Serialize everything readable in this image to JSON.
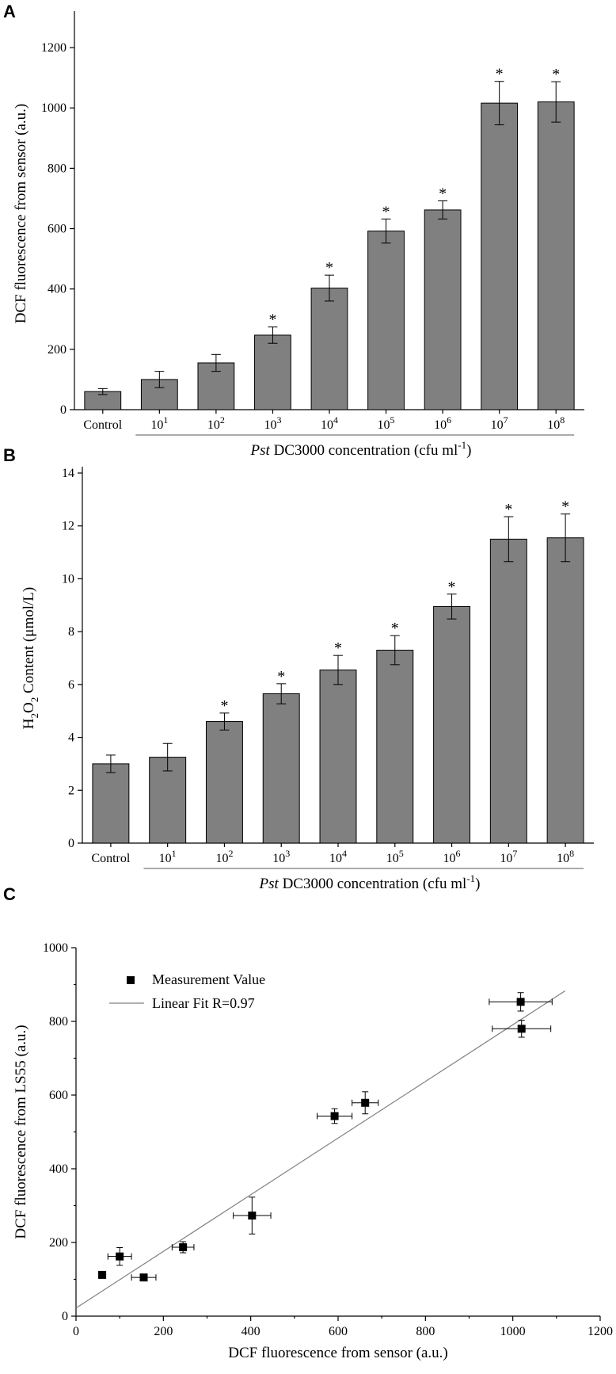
{
  "chart_data": [
    {
      "panel": "A",
      "type": "bar",
      "ylabel": "DCF fluorescence from sensor (a.u.)",
      "xlabel_italic": "Pst",
      "xlabel_rest": " DC3000 concentration (cfu ml",
      "xlabel_sup": "-1",
      "xlabel_close": ")",
      "ylim": [
        0,
        1300
      ],
      "yticks": [
        0,
        200,
        400,
        600,
        800,
        1000,
        1200
      ],
      "categories": [
        {
          "base": "Control",
          "exp": ""
        },
        {
          "base": "10",
          "exp": "1"
        },
        {
          "base": "10",
          "exp": "2"
        },
        {
          "base": "10",
          "exp": "3"
        },
        {
          "base": "10",
          "exp": "4"
        },
        {
          "base": "10",
          "exp": "5"
        },
        {
          "base": "10",
          "exp": "6"
        },
        {
          "base": "10",
          "exp": "7"
        },
        {
          "base": "10",
          "exp": "8"
        }
      ],
      "values": [
        60,
        100,
        155,
        247,
        403,
        592,
        662,
        1016,
        1020
      ],
      "errors": [
        10,
        27,
        28,
        27,
        43,
        40,
        30,
        72,
        67
      ],
      "significant": [
        false,
        false,
        false,
        true,
        true,
        true,
        true,
        true,
        true
      ],
      "star_label": "*"
    },
    {
      "panel": "B",
      "type": "bar",
      "ylabel_parts": [
        "H",
        "2",
        "O",
        "2",
        " Content (μmol/L)"
      ],
      "xlabel_italic": "Pst",
      "xlabel_rest": " DC3000 concentration (cfu ml",
      "xlabel_sup": "-1",
      "xlabel_close": ")",
      "ylim": [
        0,
        14
      ],
      "yticks": [
        0,
        2,
        4,
        6,
        8,
        10,
        12,
        14
      ],
      "categories": [
        {
          "base": "Control",
          "exp": ""
        },
        {
          "base": "10",
          "exp": "1"
        },
        {
          "base": "10",
          "exp": "2"
        },
        {
          "base": "10",
          "exp": "3"
        },
        {
          "base": "10",
          "exp": "4"
        },
        {
          "base": "10",
          "exp": "5"
        },
        {
          "base": "10",
          "exp": "6"
        },
        {
          "base": "10",
          "exp": "7"
        },
        {
          "base": "10",
          "exp": "8"
        }
      ],
      "values": [
        3.0,
        3.25,
        4.6,
        5.65,
        6.55,
        7.3,
        8.95,
        11.5,
        11.55
      ],
      "errors": [
        0.33,
        0.52,
        0.32,
        0.38,
        0.55,
        0.55,
        0.47,
        0.85,
        0.9
      ],
      "significant": [
        false,
        false,
        true,
        true,
        true,
        true,
        true,
        true,
        true
      ],
      "star_label": "*"
    },
    {
      "panel": "C",
      "type": "scatter",
      "xlabel": "DCF fluorescence from sensor (a.u.)",
      "ylabel": "DCF fluorescence from LS55  (a.u.)",
      "xlim": [
        0,
        1200
      ],
      "ylim": [
        0,
        1000
      ],
      "xticks": [
        0,
        200,
        400,
        600,
        800,
        1000,
        1200
      ],
      "yticks": [
        0,
        200,
        400,
        600,
        800,
        1000
      ],
      "points": [
        {
          "x": 60,
          "y": 112,
          "xerr": 8,
          "yerr": 5
        },
        {
          "x": 100,
          "y": 162,
          "xerr": 27,
          "yerr": 24
        },
        {
          "x": 155,
          "y": 105,
          "xerr": 28,
          "yerr": 5
        },
        {
          "x": 245,
          "y": 187,
          "xerr": 25,
          "yerr": 15
        },
        {
          "x": 403,
          "y": 273,
          "xerr": 43,
          "yerr": 50
        },
        {
          "x": 592,
          "y": 543,
          "xerr": 40,
          "yerr": 20
        },
        {
          "x": 662,
          "y": 579,
          "xerr": 30,
          "yerr": 30
        },
        {
          "x": 1018,
          "y": 853,
          "xerr": 72,
          "yerr": 25
        },
        {
          "x": 1020,
          "y": 780,
          "xerr": 67,
          "yerr": 23
        }
      ],
      "fit": {
        "x0": 0,
        "y0": 22,
        "x1": 1120,
        "y1": 883
      },
      "legend": [
        "Measurement Value",
        "Linear Fit R=0.97"
      ]
    }
  ]
}
